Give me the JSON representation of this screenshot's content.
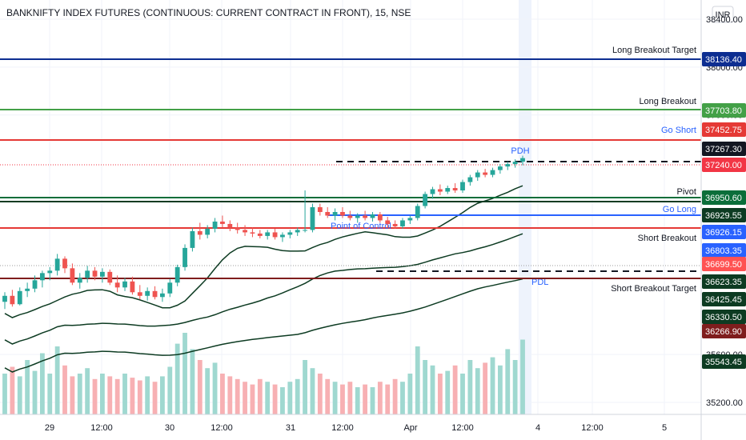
{
  "chart_data": {
    "type": "candlestick",
    "title": "BANKNIFTY INDEX FUTURES (CONTINUOUS: CURRENT CONTRACT IN FRONT), 15, NSE",
    "currency": "INR",
    "ylim": [
      35100,
      38560
    ],
    "x_ticks": [
      "29",
      "12:00",
      "30",
      "12:00",
      "31",
      "12:00",
      "Apr",
      "12:00",
      "4",
      "12:00",
      "5"
    ],
    "y_ticks": [
      "38400.00",
      "38000.00",
      "37600.00",
      "35600.00",
      "35200.00"
    ],
    "levels": [
      {
        "label": "Long Breakout Target",
        "price": "38136.40",
        "value": 38136.4,
        "color": "#0d2e91"
      },
      {
        "label": "Long Breakout",
        "price": "37703.80",
        "value": 37703.8,
        "color": "#43a047"
      },
      {
        "label": "Go Short",
        "price": "37452.75",
        "value": 37452.75,
        "color": "#e53935"
      },
      {
        "label": "PDH",
        "price": "37267.30",
        "value": 37267.3,
        "color": "#131722"
      },
      {
        "label": "",
        "price": "37240.00",
        "value": 37240.0,
        "color": "#f23645"
      },
      {
        "label": "Pivot",
        "price": "36950.60",
        "value": 36950.6,
        "color": "#0b6e3a"
      },
      {
        "label": "",
        "price": "36929.55",
        "value": 36929.55,
        "color": "#0d3b22"
      },
      {
        "label": "Go Long",
        "price": "36926.15",
        "value": 36926.15,
        "color": "#2962ff"
      },
      {
        "label": "",
        "price": "36803.35",
        "value": 36803.35,
        "color": "#2962ff"
      },
      {
        "label": "Point of Control",
        "price": "36699.50",
        "value": 36699.5,
        "color": "#ff5252"
      },
      {
        "label": "Short Breakout",
        "price": "36623.35",
        "value": 36623.35,
        "color": "#0d3b22"
      },
      {
        "label": "",
        "price": "36425.45",
        "value": 36425.45,
        "color": "#0d3b22"
      },
      {
        "label": "PDL",
        "price": "36330.50",
        "value": 36330.5,
        "color": "#0d3b22"
      },
      {
        "label": "Short Breakout Target",
        "price": "36266.90",
        "value": 36266.9,
        "color": "#7f1d1d"
      },
      {
        "label": "",
        "price": "35543.45",
        "value": 35543.45,
        "color": "#0d3b22"
      }
    ],
    "candles": [
      {
        "o": 36040,
        "h": 36120,
        "l": 35980,
        "c": 36090
      },
      {
        "o": 36090,
        "h": 36140,
        "l": 36000,
        "c": 36020
      },
      {
        "o": 36020,
        "h": 36160,
        "l": 36010,
        "c": 36130
      },
      {
        "o": 36130,
        "h": 36200,
        "l": 36080,
        "c": 36150
      },
      {
        "o": 36150,
        "h": 36260,
        "l": 36120,
        "c": 36220
      },
      {
        "o": 36220,
        "h": 36300,
        "l": 36160,
        "c": 36280
      },
      {
        "o": 36280,
        "h": 36330,
        "l": 36220,
        "c": 36300
      },
      {
        "o": 36300,
        "h": 36440,
        "l": 36260,
        "c": 36400
      },
      {
        "o": 36400,
        "h": 36420,
        "l": 36280,
        "c": 36320
      },
      {
        "o": 36320,
        "h": 36360,
        "l": 36180,
        "c": 36200
      },
      {
        "o": 36200,
        "h": 36280,
        "l": 36150,
        "c": 36240
      },
      {
        "o": 36240,
        "h": 36340,
        "l": 36200,
        "c": 36300
      },
      {
        "o": 36300,
        "h": 36330,
        "l": 36220,
        "c": 36250
      },
      {
        "o": 36250,
        "h": 36320,
        "l": 36200,
        "c": 36290
      },
      {
        "o": 36290,
        "h": 36310,
        "l": 36180,
        "c": 36200
      },
      {
        "o": 36200,
        "h": 36260,
        "l": 36120,
        "c": 36160
      },
      {
        "o": 36160,
        "h": 36240,
        "l": 36130,
        "c": 36210
      },
      {
        "o": 36210,
        "h": 36250,
        "l": 36100,
        "c": 36120
      },
      {
        "o": 36120,
        "h": 36180,
        "l": 36060,
        "c": 36090
      },
      {
        "o": 36090,
        "h": 36160,
        "l": 36050,
        "c": 36130
      },
      {
        "o": 36130,
        "h": 36170,
        "l": 36060,
        "c": 36080
      },
      {
        "o": 36080,
        "h": 36150,
        "l": 36040,
        "c": 36110
      },
      {
        "o": 36110,
        "h": 36230,
        "l": 36080,
        "c": 36200
      },
      {
        "o": 36200,
        "h": 36350,
        "l": 36170,
        "c": 36330
      },
      {
        "o": 36330,
        "h": 36520,
        "l": 36300,
        "c": 36490
      },
      {
        "o": 36490,
        "h": 36660,
        "l": 36460,
        "c": 36630
      },
      {
        "o": 36630,
        "h": 36700,
        "l": 36560,
        "c": 36600
      },
      {
        "o": 36600,
        "h": 36680,
        "l": 36570,
        "c": 36650
      },
      {
        "o": 36650,
        "h": 36740,
        "l": 36620,
        "c": 36710
      },
      {
        "o": 36710,
        "h": 36760,
        "l": 36660,
        "c": 36690
      },
      {
        "o": 36690,
        "h": 36720,
        "l": 36630,
        "c": 36660
      },
      {
        "o": 36660,
        "h": 36700,
        "l": 36610,
        "c": 36640
      },
      {
        "o": 36640,
        "h": 36680,
        "l": 36590,
        "c": 36620
      },
      {
        "o": 36620,
        "h": 36660,
        "l": 36580,
        "c": 36610
      },
      {
        "o": 36610,
        "h": 36640,
        "l": 36570,
        "c": 36590
      },
      {
        "o": 36590,
        "h": 36640,
        "l": 36560,
        "c": 36620
      },
      {
        "o": 36620,
        "h": 36650,
        "l": 36560,
        "c": 36580
      },
      {
        "o": 36580,
        "h": 36620,
        "l": 36540,
        "c": 36600
      },
      {
        "o": 36600,
        "h": 36640,
        "l": 36570,
        "c": 36620
      },
      {
        "o": 36620,
        "h": 36660,
        "l": 36590,
        "c": 36640
      },
      {
        "o": 36640,
        "h": 36970,
        "l": 36620,
        "c": 36640
      },
      {
        "o": 36640,
        "h": 36860,
        "l": 36620,
        "c": 36830
      },
      {
        "o": 36830,
        "h": 36860,
        "l": 36760,
        "c": 36790
      },
      {
        "o": 36790,
        "h": 36830,
        "l": 36740,
        "c": 36760
      },
      {
        "o": 36760,
        "h": 36820,
        "l": 36720,
        "c": 36790
      },
      {
        "o": 36790,
        "h": 36830,
        "l": 36740,
        "c": 36760
      },
      {
        "o": 36760,
        "h": 36800,
        "l": 36720,
        "c": 36740
      },
      {
        "o": 36740,
        "h": 36780,
        "l": 36700,
        "c": 36760
      },
      {
        "o": 36760,
        "h": 36800,
        "l": 36720,
        "c": 36740
      },
      {
        "o": 36740,
        "h": 36790,
        "l": 36710,
        "c": 36770
      },
      {
        "o": 36770,
        "h": 36790,
        "l": 36700,
        "c": 36720
      },
      {
        "o": 36720,
        "h": 36750,
        "l": 36660,
        "c": 36690
      },
      {
        "o": 36690,
        "h": 36720,
        "l": 36650,
        "c": 36670
      },
      {
        "o": 36670,
        "h": 36740,
        "l": 36650,
        "c": 36720
      },
      {
        "o": 36720,
        "h": 36760,
        "l": 36690,
        "c": 36740
      },
      {
        "o": 36740,
        "h": 36860,
        "l": 36720,
        "c": 36840
      },
      {
        "o": 36840,
        "h": 36960,
        "l": 36820,
        "c": 36940
      },
      {
        "o": 36940,
        "h": 37000,
        "l": 36900,
        "c": 36980
      },
      {
        "o": 36980,
        "h": 37020,
        "l": 36930,
        "c": 36960
      },
      {
        "o": 36960,
        "h": 37010,
        "l": 36940,
        "c": 36990
      },
      {
        "o": 36990,
        "h": 37030,
        "l": 36950,
        "c": 36970
      },
      {
        "o": 36970,
        "h": 37060,
        "l": 36950,
        "c": 37040
      },
      {
        "o": 37040,
        "h": 37100,
        "l": 37010,
        "c": 37080
      },
      {
        "o": 37080,
        "h": 37140,
        "l": 37050,
        "c": 37120
      },
      {
        "o": 37120,
        "h": 37150,
        "l": 37080,
        "c": 37100
      },
      {
        "o": 37100,
        "h": 37160,
        "l": 37080,
        "c": 37140
      },
      {
        "o": 37140,
        "h": 37190,
        "l": 37110,
        "c": 37170
      },
      {
        "o": 37170,
        "h": 37210,
        "l": 37140,
        "c": 37190
      },
      {
        "o": 37190,
        "h": 37230,
        "l": 37160,
        "c": 37210
      },
      {
        "o": 37210,
        "h": 37260,
        "l": 37180,
        "c": 37240
      }
    ],
    "volume": [
      0.3,
      0.35,
      0.28,
      0.4,
      0.32,
      0.45,
      0.3,
      0.5,
      0.36,
      0.28,
      0.3,
      0.34,
      0.26,
      0.3,
      0.28,
      0.26,
      0.3,
      0.27,
      0.25,
      0.28,
      0.24,
      0.28,
      0.35,
      0.52,
      0.6,
      0.48,
      0.4,
      0.34,
      0.38,
      0.3,
      0.28,
      0.26,
      0.24,
      0.22,
      0.26,
      0.24,
      0.22,
      0.2,
      0.24,
      0.26,
      0.4,
      0.34,
      0.3,
      0.26,
      0.24,
      0.22,
      0.24,
      0.2,
      0.22,
      0.2,
      0.24,
      0.22,
      0.26,
      0.24,
      0.3,
      0.5,
      0.4,
      0.36,
      0.3,
      0.32,
      0.36,
      0.3,
      0.4,
      0.34,
      0.38,
      0.42,
      0.36,
      0.48,
      0.4,
      0.55
    ],
    "volume_colors": {
      "up": "#9fd8d0",
      "down": "#f7b0b3"
    },
    "candle_colors": {
      "up": "#26a69a",
      "down": "#ef5350"
    }
  }
}
